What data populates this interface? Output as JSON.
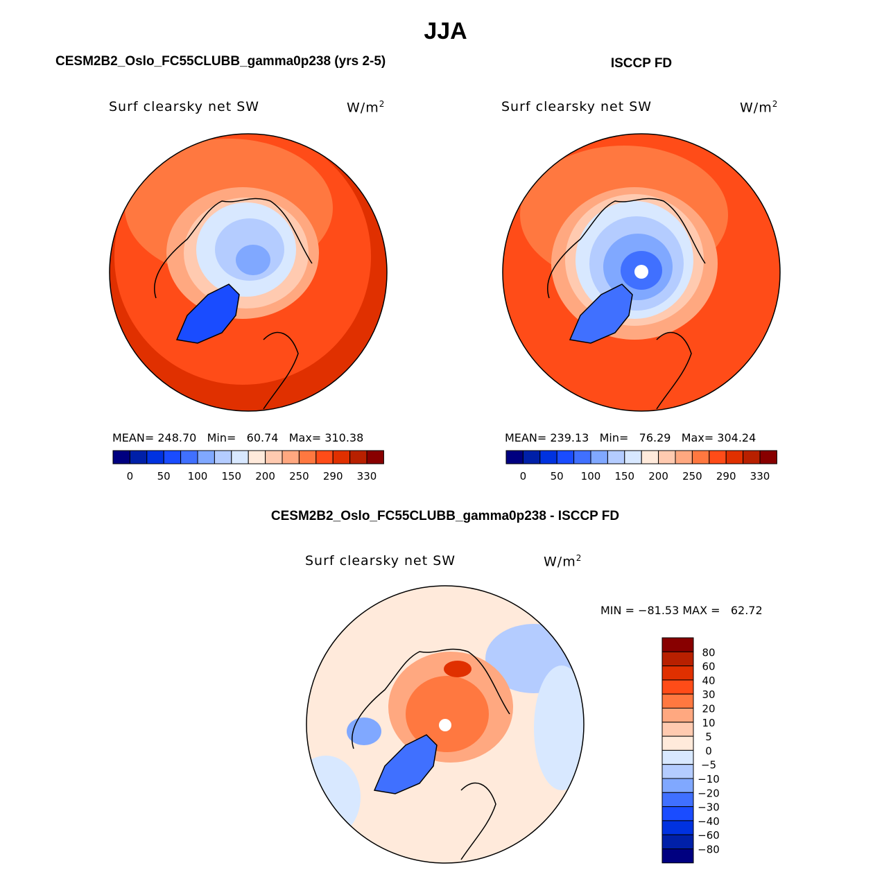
{
  "title": "JJA",
  "panels": [
    {
      "heading": "CESM2B2_Oslo_FC55CLUBB_gamma0p238 (yrs 2-5)",
      "variable": "Surf clearsky net SW",
      "units_base": "W/m",
      "units_exp": "2",
      "stats": {
        "mean_label": "MEAN=",
        "mean": "248.70",
        "min_label": "Min=",
        "min": "60.74",
        "max_label": "Max=",
        "max": "310.38"
      }
    },
    {
      "heading": "ISCCP FD",
      "variable": "Surf clearsky net SW",
      "units_base": "W/m",
      "units_exp": "2",
      "stats": {
        "mean_label": "MEAN=",
        "mean": "239.13",
        "min_label": "Min=",
        "min": "76.29",
        "max_label": "Max=",
        "max": "304.24"
      }
    },
    {
      "heading": "CESM2B2_Oslo_FC55CLUBB_gamma0p238 - ISCCP FD",
      "variable": "Surf clearsky net SW",
      "units_base": "W/m",
      "units_exp": "2",
      "stats": {
        "text": "MIN = −81.53 MAX =   62.72"
      }
    }
  ],
  "colorbar_abs": {
    "labels": [
      "0",
      "50",
      "100",
      "150",
      "200",
      "250",
      "290",
      "330"
    ]
  },
  "colorbar_diff": {
    "labels": [
      "80",
      "60",
      "40",
      "30",
      "20",
      "10",
      "5",
      "0",
      "−5",
      "−10",
      "−20",
      "−30",
      "−40",
      "−60",
      "−80"
    ]
  },
  "palette": [
    "#000080",
    "#0020a8",
    "#0032e0",
    "#1a4cff",
    "#4070ff",
    "#80a8ff",
    "#b4ccff",
    "#d8e8ff",
    "#ffeadb",
    "#ffcab0",
    "#ffa880",
    "#ff7840",
    "#ff4c18",
    "#e03000",
    "#b82000",
    "#880000"
  ]
}
